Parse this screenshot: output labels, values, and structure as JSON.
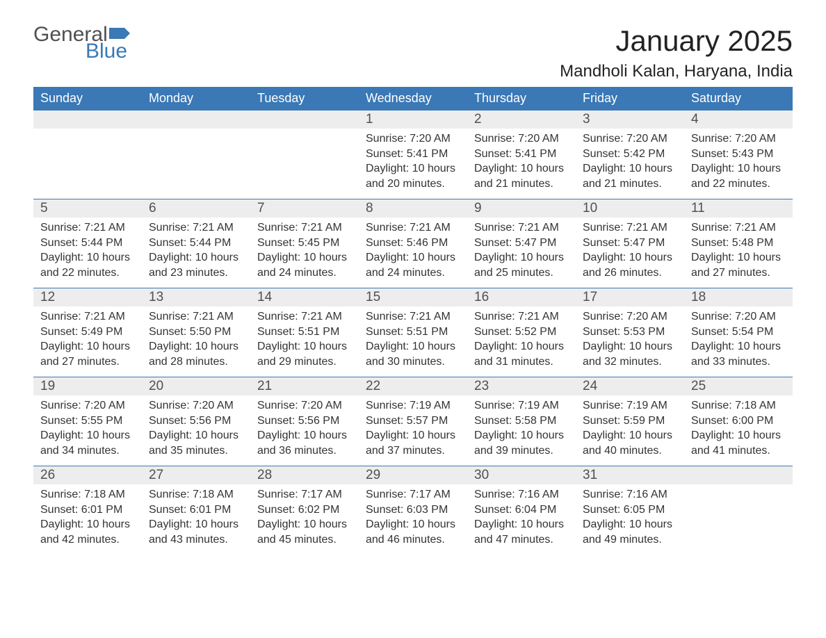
{
  "logo": {
    "general": "General",
    "blue": "Blue"
  },
  "title": "January 2025",
  "location": "Mandholi Kalan, Haryana, India",
  "weekdays": [
    "Sunday",
    "Monday",
    "Tuesday",
    "Wednesday",
    "Thursday",
    "Friday",
    "Saturday"
  ],
  "labels": {
    "sunrise": "Sunrise:",
    "sunset": "Sunset:",
    "daylight": "Daylight:"
  },
  "colors": {
    "header_bg": "#3a78b6",
    "header_text": "#ffffff",
    "daybar_bg": "#ededed",
    "body_text": "#333333",
    "logo_blue": "#3a78b6",
    "logo_gray": "#505050"
  },
  "weeks": [
    [
      {
        "day": "",
        "sunrise": "",
        "sunset": "",
        "daylight": ""
      },
      {
        "day": "",
        "sunrise": "",
        "sunset": "",
        "daylight": ""
      },
      {
        "day": "",
        "sunrise": "",
        "sunset": "",
        "daylight": ""
      },
      {
        "day": "1",
        "sunrise": "7:20 AM",
        "sunset": "5:41 PM",
        "daylight": "10 hours and 20 minutes."
      },
      {
        "day": "2",
        "sunrise": "7:20 AM",
        "sunset": "5:41 PM",
        "daylight": "10 hours and 21 minutes."
      },
      {
        "day": "3",
        "sunrise": "7:20 AM",
        "sunset": "5:42 PM",
        "daylight": "10 hours and 21 minutes."
      },
      {
        "day": "4",
        "sunrise": "7:20 AM",
        "sunset": "5:43 PM",
        "daylight": "10 hours and 22 minutes."
      }
    ],
    [
      {
        "day": "5",
        "sunrise": "7:21 AM",
        "sunset": "5:44 PM",
        "daylight": "10 hours and 22 minutes."
      },
      {
        "day": "6",
        "sunrise": "7:21 AM",
        "sunset": "5:44 PM",
        "daylight": "10 hours and 23 minutes."
      },
      {
        "day": "7",
        "sunrise": "7:21 AM",
        "sunset": "5:45 PM",
        "daylight": "10 hours and 24 minutes."
      },
      {
        "day": "8",
        "sunrise": "7:21 AM",
        "sunset": "5:46 PM",
        "daylight": "10 hours and 24 minutes."
      },
      {
        "day": "9",
        "sunrise": "7:21 AM",
        "sunset": "5:47 PM",
        "daylight": "10 hours and 25 minutes."
      },
      {
        "day": "10",
        "sunrise": "7:21 AM",
        "sunset": "5:47 PM",
        "daylight": "10 hours and 26 minutes."
      },
      {
        "day": "11",
        "sunrise": "7:21 AM",
        "sunset": "5:48 PM",
        "daylight": "10 hours and 27 minutes."
      }
    ],
    [
      {
        "day": "12",
        "sunrise": "7:21 AM",
        "sunset": "5:49 PM",
        "daylight": "10 hours and 27 minutes."
      },
      {
        "day": "13",
        "sunrise": "7:21 AM",
        "sunset": "5:50 PM",
        "daylight": "10 hours and 28 minutes."
      },
      {
        "day": "14",
        "sunrise": "7:21 AM",
        "sunset": "5:51 PM",
        "daylight": "10 hours and 29 minutes."
      },
      {
        "day": "15",
        "sunrise": "7:21 AM",
        "sunset": "5:51 PM",
        "daylight": "10 hours and 30 minutes."
      },
      {
        "day": "16",
        "sunrise": "7:21 AM",
        "sunset": "5:52 PM",
        "daylight": "10 hours and 31 minutes."
      },
      {
        "day": "17",
        "sunrise": "7:20 AM",
        "sunset": "5:53 PM",
        "daylight": "10 hours and 32 minutes."
      },
      {
        "day": "18",
        "sunrise": "7:20 AM",
        "sunset": "5:54 PM",
        "daylight": "10 hours and 33 minutes."
      }
    ],
    [
      {
        "day": "19",
        "sunrise": "7:20 AM",
        "sunset": "5:55 PM",
        "daylight": "10 hours and 34 minutes."
      },
      {
        "day": "20",
        "sunrise": "7:20 AM",
        "sunset": "5:56 PM",
        "daylight": "10 hours and 35 minutes."
      },
      {
        "day": "21",
        "sunrise": "7:20 AM",
        "sunset": "5:56 PM",
        "daylight": "10 hours and 36 minutes."
      },
      {
        "day": "22",
        "sunrise": "7:19 AM",
        "sunset": "5:57 PM",
        "daylight": "10 hours and 37 minutes."
      },
      {
        "day": "23",
        "sunrise": "7:19 AM",
        "sunset": "5:58 PM",
        "daylight": "10 hours and 39 minutes."
      },
      {
        "day": "24",
        "sunrise": "7:19 AM",
        "sunset": "5:59 PM",
        "daylight": "10 hours and 40 minutes."
      },
      {
        "day": "25",
        "sunrise": "7:18 AM",
        "sunset": "6:00 PM",
        "daylight": "10 hours and 41 minutes."
      }
    ],
    [
      {
        "day": "26",
        "sunrise": "7:18 AM",
        "sunset": "6:01 PM",
        "daylight": "10 hours and 42 minutes."
      },
      {
        "day": "27",
        "sunrise": "7:18 AM",
        "sunset": "6:01 PM",
        "daylight": "10 hours and 43 minutes."
      },
      {
        "day": "28",
        "sunrise": "7:17 AM",
        "sunset": "6:02 PM",
        "daylight": "10 hours and 45 minutes."
      },
      {
        "day": "29",
        "sunrise": "7:17 AM",
        "sunset": "6:03 PM",
        "daylight": "10 hours and 46 minutes."
      },
      {
        "day": "30",
        "sunrise": "7:16 AM",
        "sunset": "6:04 PM",
        "daylight": "10 hours and 47 minutes."
      },
      {
        "day": "31",
        "sunrise": "7:16 AM",
        "sunset": "6:05 PM",
        "daylight": "10 hours and 49 minutes."
      },
      {
        "day": "",
        "sunrise": "",
        "sunset": "",
        "daylight": ""
      }
    ]
  ]
}
